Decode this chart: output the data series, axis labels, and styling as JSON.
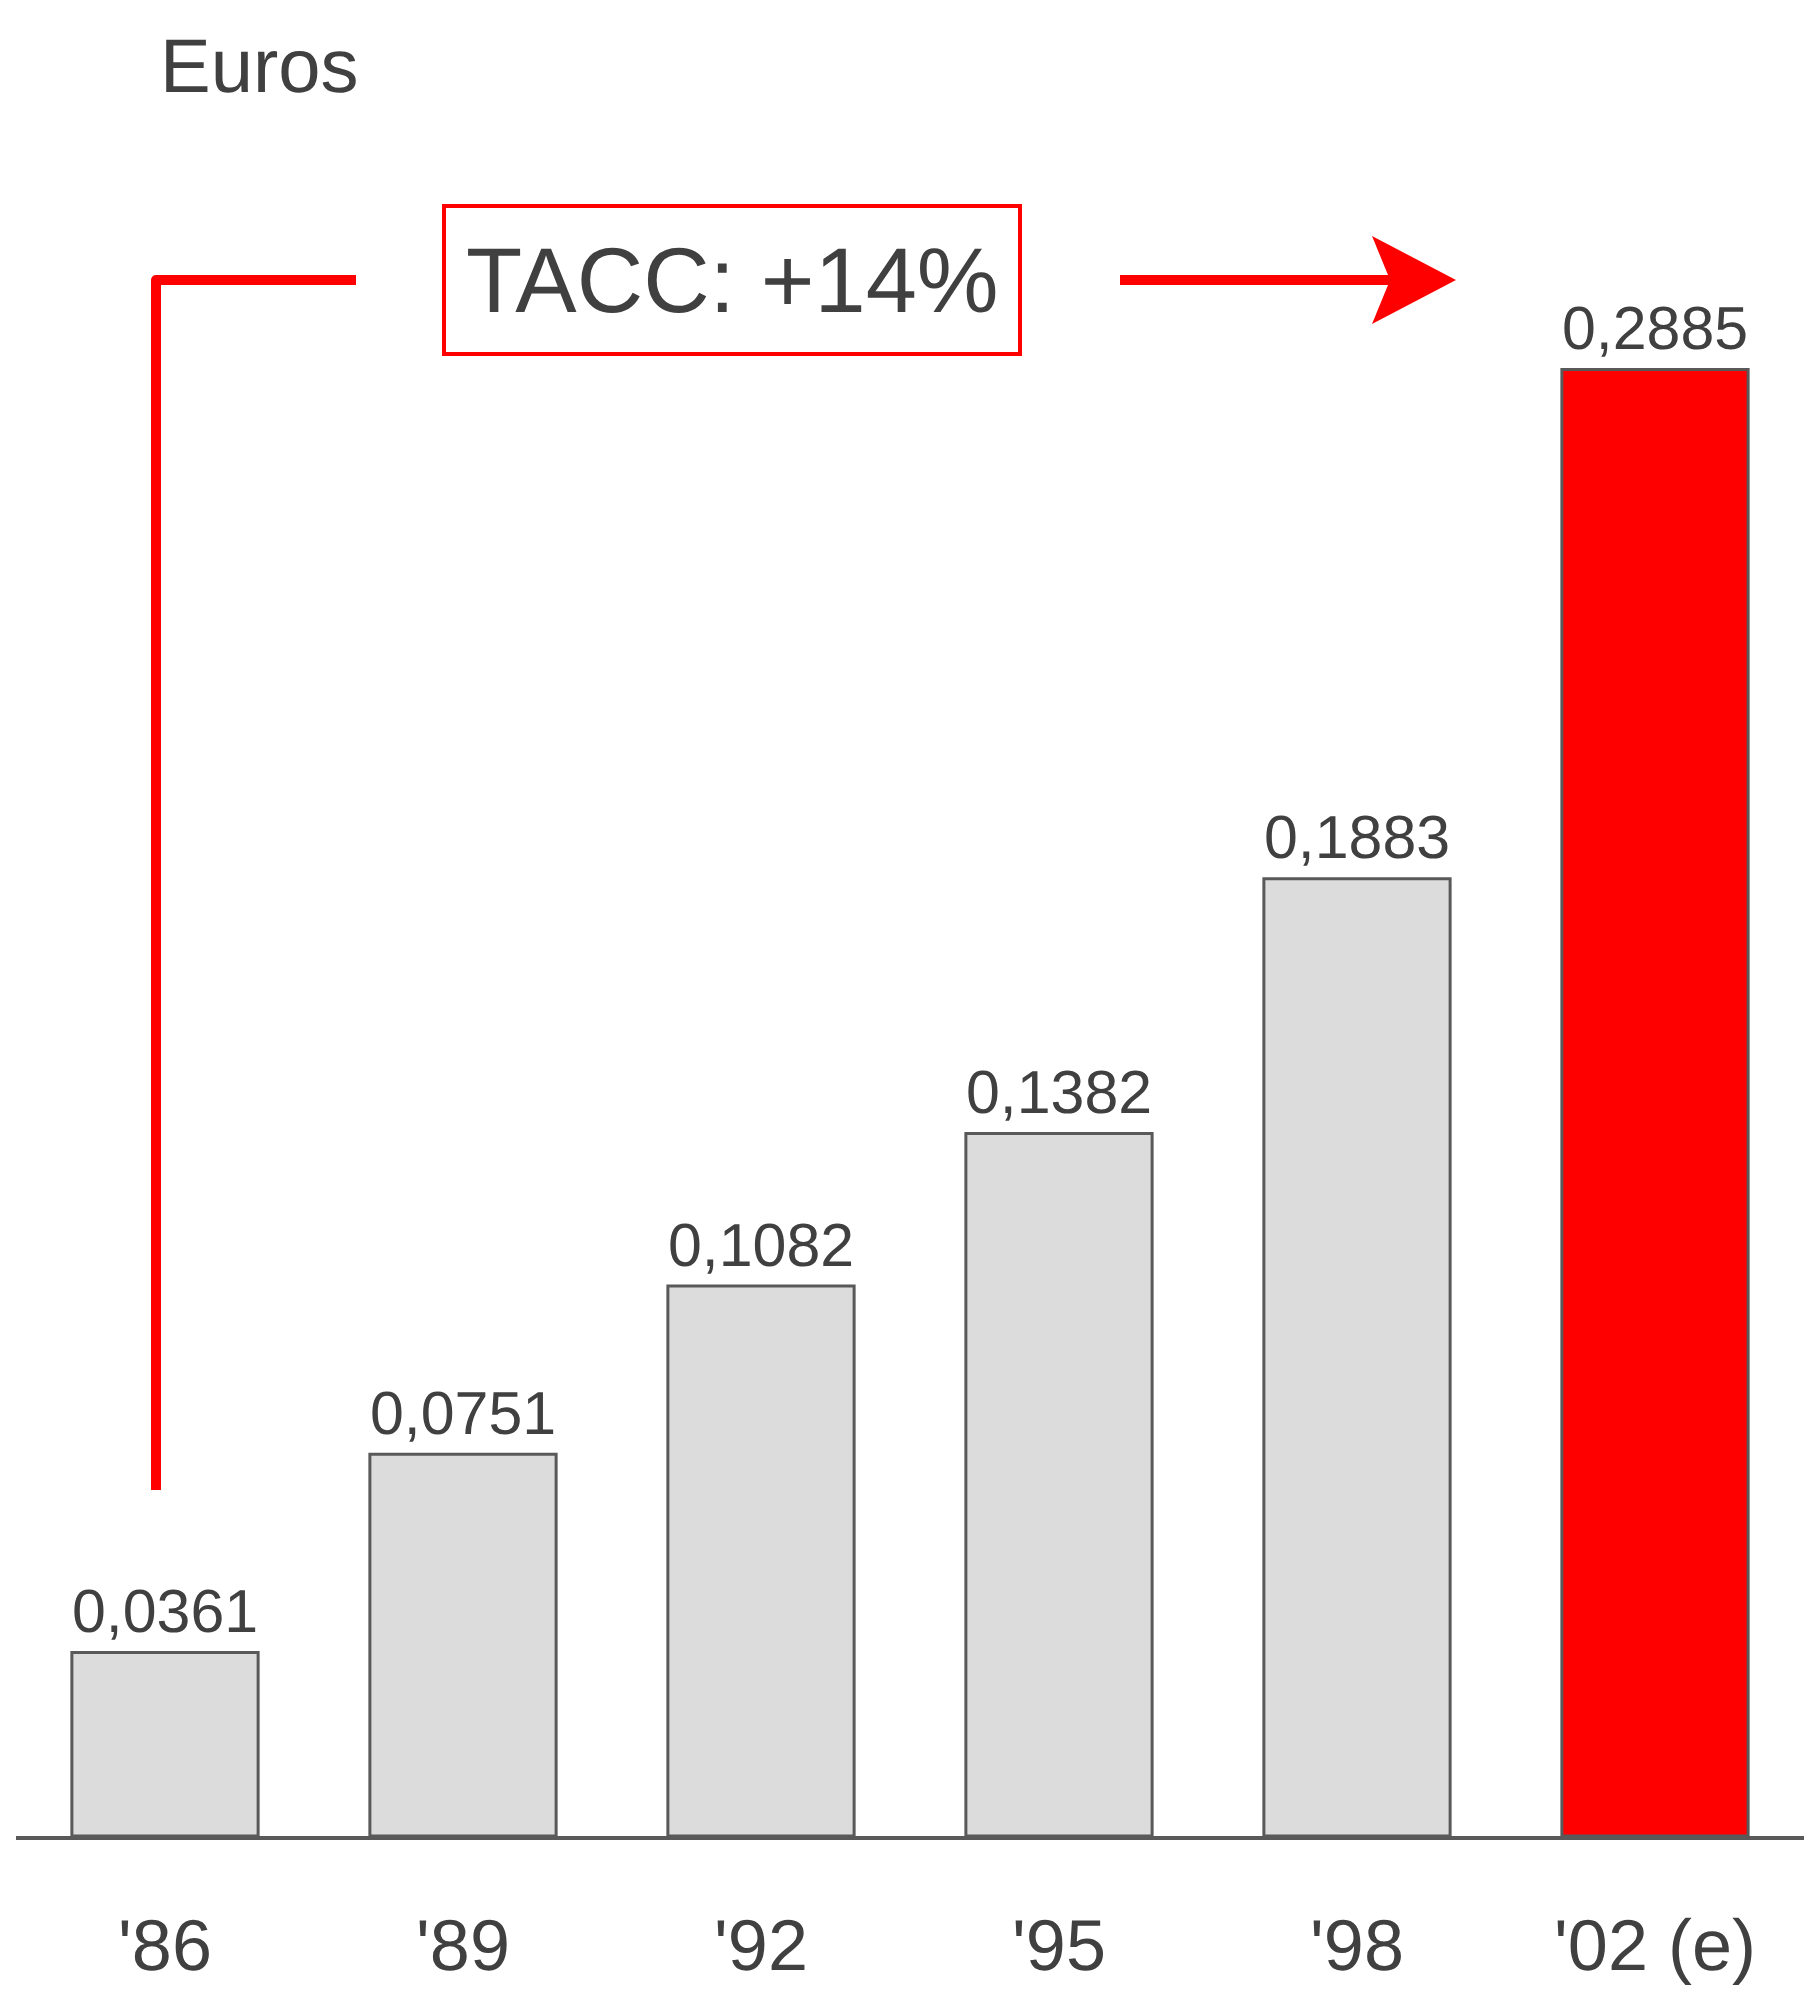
{
  "chart_data": {
    "type": "bar",
    "ylabel": "Euros",
    "categories": [
      "'86",
      "'89",
      "'92",
      "'95",
      "'98",
      "'02 (e)"
    ],
    "values": [
      0.0361,
      0.0751,
      0.1082,
      0.1382,
      0.1883,
      0.2885
    ],
    "colors": [
      "#dcdcdc",
      "#dcdcdc",
      "#dcdcdc",
      "#dcdcdc",
      "#dcdcdc",
      "#ff0000"
    ],
    "value_labels": [
      "0,0361",
      "0,0751",
      "0,1082",
      "0,1382",
      "0,1883",
      "0,2885"
    ],
    "annotations": [
      "TACC: +14%"
    ],
    "grid": false
  }
}
